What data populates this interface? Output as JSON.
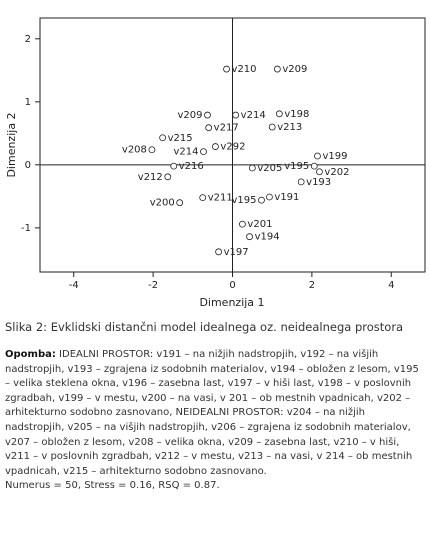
{
  "chart_data": {
    "type": "scatter",
    "xlabel": "Dimenzija 1",
    "ylabel": "Dimenzija 2",
    "xlim": [
      -4.85,
      4.85
    ],
    "ylim": [
      -1.7,
      2.33
    ],
    "xticks": [
      -4,
      -2,
      0,
      2,
      4
    ],
    "yticks": [
      -1,
      0,
      1,
      2
    ],
    "point_labels": [
      "v210",
      "v209",
      "v209",
      "v214",
      "v198",
      "v217",
      "v213",
      "v215",
      "v292",
      "v208",
      "v214",
      "v199",
      "v216",
      "v205",
      "v195",
      "v202",
      "v212",
      "v193",
      "v191",
      "v195",
      "v211",
      "v200",
      "v201",
      "v194",
      "v197"
    ],
    "x": [
      -0.15,
      1.13,
      -0.63,
      0.08,
      1.18,
      -0.6,
      1.0,
      -1.76,
      -0.43,
      -2.03,
      -0.73,
      2.14,
      -1.48,
      0.5,
      2.06,
      2.19,
      -1.63,
      1.73,
      0.93,
      0.73,
      -0.75,
      -1.33,
      0.25,
      0.43,
      -0.35
    ],
    "y": [
      1.52,
      1.52,
      0.79,
      0.79,
      0.81,
      0.59,
      0.6,
      0.43,
      0.29,
      0.24,
      0.21,
      0.14,
      -0.02,
      -0.05,
      -0.02,
      -0.11,
      -0.19,
      -0.27,
      -0.51,
      -0.56,
      -0.52,
      -0.6,
      -0.94,
      -1.14,
      -1.38
    ],
    "label_position": [
      "right",
      "right",
      "left",
      "right",
      "right",
      "right",
      "right",
      "right",
      "right",
      "left",
      "left",
      "right",
      "right",
      "right",
      "left",
      "right",
      "left",
      "right",
      "right",
      "left",
      "right",
      "left",
      "right",
      "right",
      "right"
    ],
    "color": "#ffffff"
  },
  "caption": "Slika 2: Evklidski distančni model idealnega oz. neidealnega prostora",
  "note": {
    "label": "Opomba:",
    "text": "IDEALNI PROSTOR: v191 – na nižjih nadstropjih, v192 – na višjih nadstropjih, v193 – zgrajena iz sodobnih materialov, v194 – obložen z lesom, v195 – velika steklena okna, v196 – zasebna last, v197 – v hiši last, v198 – v poslovnih zgradbah, v199 – v mestu, v200 – na vasi, v 201 – ob mestnih vpadnicah, v202 – arhitekturno sodobno zasnovano, NEIDEALNI PROSTOR: v204 – na nižjih nadstropjih, v205 – na višjih nadstropjih, v206 – zgrajena iz sodobnih materialov, v207 – obložen z lesom, v208 – velika okna, v209 – zasebna last, v210 – v hiši, v211 – v poslovnih zgradbah, v212 – v mestu, v213 – na vasi, v 214 – ob mestnih vpadnicah, v215 – arhitekturno sodobno zasnovano.",
    "stats": "Numerus = 50, Stress = 0.16, RSQ = 0.87."
  }
}
